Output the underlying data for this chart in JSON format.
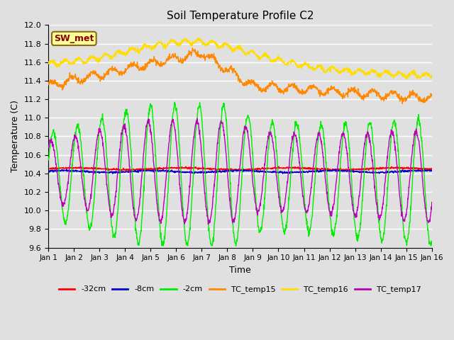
{
  "title": "Soil Temperature Profile C2",
  "xlabel": "Time",
  "ylabel": "Temperature (C)",
  "ylim": [
    9.6,
    12.0
  ],
  "xlim": [
    0,
    15
  ],
  "xtick_labels": [
    "Jan 1",
    "Jan 2",
    "Jan 3",
    "Jan 4",
    "Jan 5",
    "Jan 6",
    "Jan 7",
    "Jan 8",
    "Jan 9",
    "Jan 10",
    "Jan 11",
    "Jan 12",
    "Jan 13",
    "Jan 14",
    "Jan 15",
    "Jan 16"
  ],
  "ytick_vals": [
    9.6,
    9.8,
    10.0,
    10.2,
    10.4,
    10.6,
    10.8,
    11.0,
    11.2,
    11.4,
    11.6,
    11.8,
    12.0
  ],
  "bg_color": "#e0e0e0",
  "plot_bg_color": "#e0e0e0",
  "grid_color": "#ffffff",
  "annotation_text": "SW_met",
  "annotation_bg": "#ffff99",
  "annotation_border": "#8b6914",
  "annotation_text_color": "#8b0000",
  "legend_entries": [
    "-32cm",
    "-8cm",
    "-2cm",
    "TC_temp15",
    "TC_temp16",
    "TC_temp17"
  ],
  "line_colors": [
    "#ff0000",
    "#0000cc",
    "#00ee00",
    "#ff8800",
    "#ffdd00",
    "#bb00bb"
  ]
}
